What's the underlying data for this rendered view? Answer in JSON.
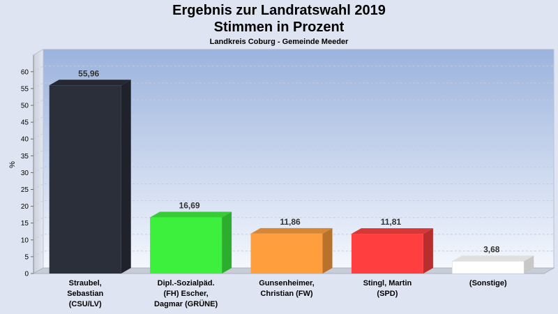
{
  "chart_data": {
    "type": "bar",
    "title": "Ergebnis zur Landratswahl 2019",
    "subtitle_line": "Stimmen in Prozent",
    "subtitle": "Landkreis Coburg - Gemeinde Meeder",
    "ylabel": "%",
    "ylim": [
      0,
      65
    ],
    "yticks": [
      0,
      5,
      10,
      15,
      20,
      25,
      30,
      35,
      40,
      45,
      50,
      55,
      60
    ],
    "grid": true,
    "categories": [
      [
        "Straubel,",
        "Sebastian",
        "(CSU/LV)"
      ],
      [
        "Dipl.-Sozialpäd.",
        "(FH) Escher,",
        "Dagmar (GRÜNE)"
      ],
      [
        "Gunsenheimer,",
        "Christian (FW)"
      ],
      [
        "Stingl, Martin",
        "(SPD)"
      ],
      [
        "(Sonstige)"
      ]
    ],
    "values": [
      55.96,
      16.69,
      11.86,
      11.81,
      3.68
    ],
    "value_labels": [
      "55,96",
      "16,69",
      "11,86",
      "11,81",
      "3,68"
    ],
    "colors": [
      "#2b2f3a",
      "#3ef03e",
      "#ff9e3d",
      "#ff3f3f",
      "#ffffff"
    ]
  }
}
